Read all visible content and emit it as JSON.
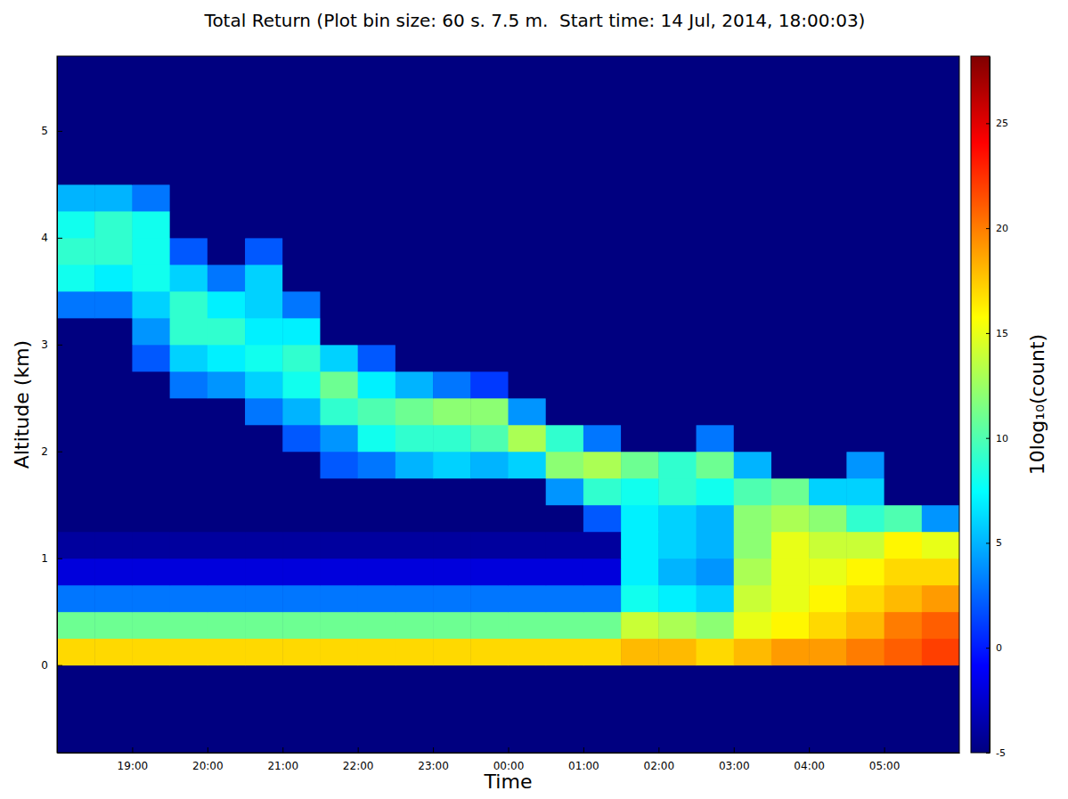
{
  "chart_data": {
    "type": "heatmap",
    "title": "Total Return (Plot bin size: 60 s. 7.5 m.  Start time: 14 Jul, 2014, 18:00:03)",
    "x_label": "Time",
    "y_label": "Altitude (km)",
    "xlim": [
      18,
      30
    ],
    "ylim": [
      -0.82,
      5.7
    ],
    "xticks": [
      {
        "value": 19,
        "label": "19:00"
      },
      {
        "value": 20,
        "label": "20:00"
      },
      {
        "value": 21,
        "label": "21:00"
      },
      {
        "value": 22,
        "label": "22:00"
      },
      {
        "value": 23,
        "label": "23:00"
      },
      {
        "value": 24,
        "label": "00:00"
      },
      {
        "value": 25,
        "label": "01:00"
      },
      {
        "value": 26,
        "label": "02:00"
      },
      {
        "value": 27,
        "label": "03:00"
      },
      {
        "value": 28,
        "label": "04:00"
      },
      {
        "value": 29,
        "label": "05:00"
      }
    ],
    "yticks": [
      0,
      1,
      2,
      3,
      4,
      5
    ],
    "x_bins": [
      18,
      18.5,
      19,
      19.5,
      20,
      20.5,
      21,
      21.5,
      22,
      22.5,
      23,
      23.5,
      24,
      24.5,
      25,
      25.5,
      26,
      26.5,
      27,
      27.5,
      28,
      28.5,
      29,
      29.5,
      30
    ],
    "y_bins": [
      -1,
      -0.75,
      -0.5,
      -0.25,
      0,
      0.25,
      0.5,
      0.75,
      1,
      1.25,
      1.5,
      1.75,
      2,
      2.25,
      2.5,
      2.75,
      3,
      3.25,
      3.5,
      3.75,
      4,
      4.25,
      4.5,
      4.75,
      5,
      5.25,
      5.5,
      5.75
    ],
    "values": [
      [
        -5,
        -5,
        -5,
        -5,
        -5,
        -5,
        -5,
        -5,
        -5,
        -5,
        -5,
        -5,
        -5,
        -5,
        -5,
        -5,
        -5,
        -5,
        -5,
        -5,
        -5,
        -5,
        -5,
        -5
      ],
      [
        -5,
        -5,
        -5,
        -5,
        -5,
        -5,
        -5,
        -5,
        -5,
        -5,
        -5,
        -5,
        -5,
        -5,
        -5,
        -5,
        -5,
        -5,
        -5,
        -5,
        -5,
        -5,
        -5,
        -5
      ],
      [
        -5,
        -5,
        -5,
        -5,
        -5,
        -5,
        -5,
        -5,
        -5,
        -5,
        -5,
        -5,
        -5,
        -5,
        -5,
        -5,
        -5,
        -5,
        -5,
        -5,
        -5,
        -5,
        -5,
        -5
      ],
      [
        -5,
        -5,
        -5,
        -5,
        -5,
        -5,
        -5,
        -5,
        -5,
        -5,
        -5,
        -5,
        -5,
        -5,
        -5,
        -5,
        -5,
        -5,
        -5,
        -5,
        -5,
        -5,
        -5,
        -5
      ],
      [
        17,
        17,
        17,
        17,
        17,
        17,
        17,
        17,
        17,
        17,
        17,
        17,
        17,
        17,
        17,
        18,
        18,
        17,
        18,
        19,
        19,
        20,
        21,
        22
      ],
      [
        11,
        11,
        11,
        11,
        11,
        11,
        11,
        11,
        11,
        11,
        11,
        11,
        11,
        11,
        11,
        14,
        13,
        12,
        15,
        16,
        17,
        18,
        20,
        21
      ],
      [
        3,
        3,
        3,
        3,
        3,
        3,
        3,
        3,
        3,
        3,
        3,
        3,
        3,
        3,
        3,
        8,
        7,
        6,
        14,
        15,
        16,
        17,
        18,
        19
      ],
      [
        -2,
        -2,
        -2,
        -2,
        -2,
        -2,
        -2,
        -2,
        -2,
        -2,
        -2,
        -2,
        -2,
        -2,
        -2,
        7,
        5,
        4,
        13,
        15,
        15,
        16,
        17,
        17
      ],
      [
        -4,
        -4,
        -4,
        -4,
        -4,
        -4,
        -4,
        -4,
        -4,
        -4,
        -4,
        -4,
        -4,
        -4,
        -4,
        7,
        6,
        5,
        12,
        15,
        14,
        14,
        16,
        15
      ],
      [
        -5,
        -5,
        -5,
        -5,
        -5,
        -5,
        -5,
        -5,
        -5,
        -5,
        -5,
        -5,
        -5,
        -5,
        2,
        7,
        6,
        5,
        12,
        13,
        12,
        9,
        10,
        4
      ],
      [
        -5,
        -5,
        -5,
        -5,
        -5,
        -5,
        -5,
        -5,
        -5,
        -5,
        -5,
        -5,
        -5,
        4,
        9,
        8,
        9,
        8,
        10,
        11,
        6,
        6,
        -5,
        -5
      ],
      [
        -5,
        -5,
        -5,
        -5,
        -5,
        -5,
        -5,
        2,
        3,
        5,
        6,
        5,
        6,
        12,
        13,
        11,
        9,
        11,
        5,
        -5,
        -5,
        4,
        -5,
        -5
      ],
      [
        -5,
        -5,
        -5,
        -5,
        -5,
        -5,
        2,
        4,
        8,
        9,
        9,
        10,
        13,
        9,
        3,
        -5,
        -5,
        3,
        -5,
        -5,
        -5,
        -5,
        -5,
        -5
      ],
      [
        -5,
        -5,
        -5,
        -5,
        -5,
        3,
        5,
        9,
        10,
        11,
        12,
        12,
        4,
        -5,
        -5,
        -5,
        -5,
        -5,
        -5,
        -5,
        -5,
        -5,
        -5,
        -5
      ],
      [
        -5,
        -5,
        -5,
        3,
        4,
        6,
        8,
        11,
        7,
        5,
        3,
        1,
        -5,
        -5,
        -5,
        -5,
        -5,
        -5,
        -5,
        -5,
        -5,
        -5,
        -5,
        -5
      ],
      [
        -5,
        -5,
        2,
        6,
        7,
        8,
        9,
        6,
        2,
        -5,
        -5,
        -5,
        -5,
        -5,
        -5,
        -5,
        -5,
        -5,
        -5,
        -5,
        -5,
        -5,
        -5,
        -5
      ],
      [
        -5,
        -5,
        4,
        9,
        9,
        7,
        7,
        -5,
        -5,
        -5,
        -5,
        -5,
        -5,
        -5,
        -5,
        -5,
        -5,
        -5,
        -5,
        -5,
        -5,
        -5,
        -5,
        -5
      ],
      [
        3,
        3,
        6,
        9,
        7,
        6,
        3,
        -5,
        -5,
        -5,
        -5,
        -5,
        -5,
        -5,
        -5,
        -5,
        -5,
        -5,
        -5,
        -5,
        -5,
        -5,
        -5,
        -5
      ],
      [
        8,
        7,
        8,
        6,
        3,
        6,
        -5,
        -5,
        -5,
        -5,
        -5,
        -5,
        -5,
        -5,
        -5,
        -5,
        -5,
        -5,
        -5,
        -5,
        -5,
        -5,
        -5,
        -5
      ],
      [
        9,
        9,
        8,
        2,
        -5,
        2,
        -5,
        -5,
        -5,
        -5,
        -5,
        -5,
        -5,
        -5,
        -5,
        -5,
        -5,
        -5,
        -5,
        -5,
        -5,
        -5,
        -5,
        -5
      ],
      [
        8,
        9,
        8,
        -5,
        -5,
        -5,
        -5,
        -5,
        -5,
        -5,
        -5,
        -5,
        -5,
        -5,
        -5,
        -5,
        -5,
        -5,
        -5,
        -5,
        -5,
        -5,
        -5,
        -5
      ],
      [
        5,
        5,
        3,
        -5,
        -5,
        -5,
        -5,
        -5,
        -5,
        -5,
        -5,
        -5,
        -5,
        -5,
        -5,
        -5,
        -5,
        -5,
        -5,
        -5,
        -5,
        -5,
        -5,
        -5
      ],
      [
        -5,
        -5,
        -5,
        -5,
        -5,
        -5,
        -5,
        -5,
        -5,
        -5,
        -5,
        -5,
        -5,
        -5,
        -5,
        -5,
        -5,
        -5,
        -5,
        -5,
        -5,
        -5,
        -5,
        -5
      ],
      [
        -5,
        -5,
        -5,
        -5,
        -5,
        -5,
        -5,
        -5,
        -5,
        -5,
        -5,
        -5,
        -5,
        -5,
        -5,
        -5,
        -5,
        -5,
        -5,
        -5,
        -5,
        -5,
        -5,
        -5
      ],
      [
        -5,
        -5,
        -5,
        -5,
        -5,
        -5,
        -5,
        -5,
        -5,
        -5,
        -5,
        -5,
        -5,
        -5,
        -5,
        -5,
        -5,
        -5,
        -5,
        -5,
        -5,
        -5,
        -5,
        -5
      ],
      [
        -5,
        -5,
        -5,
        -5,
        -5,
        -5,
        -5,
        -5,
        -5,
        -5,
        -5,
        -5,
        -5,
        -5,
        -5,
        -5,
        -5,
        -5,
        -5,
        -5,
        -5,
        -5,
        -5,
        -5
      ],
      [
        -5,
        -5,
        -5,
        -5,
        -5,
        -5,
        -5,
        -5,
        -5,
        -5,
        -5,
        -5,
        -5,
        -5,
        -5,
        -5,
        -5,
        -5,
        -5,
        -5,
        -5,
        -5,
        -5,
        -5
      ]
    ],
    "colorbar": {
      "label": "10log₁₀(count)",
      "range": [
        -5,
        28.2
      ],
      "ticks": [
        -5,
        0,
        5,
        10,
        15,
        20,
        25
      ]
    }
  }
}
